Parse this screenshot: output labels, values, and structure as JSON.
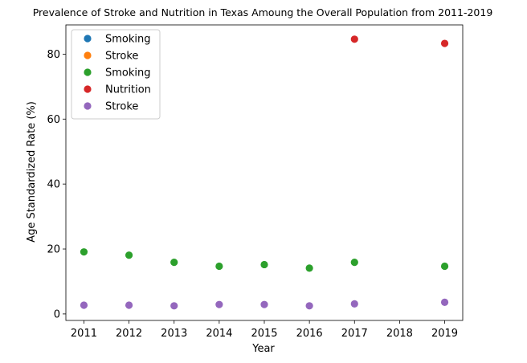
{
  "chart_data": {
    "type": "scatter",
    "title": "Prevalence of Stroke and Nutrition in Texas Amoung the Overall Population from 2011-2019",
    "xlabel": "Year",
    "ylabel": "Age Standardized Rate (%)",
    "xlim": [
      2010.6,
      2019.4
    ],
    "ylim": [
      -2,
      89
    ],
    "x_ticks": [
      2011,
      2012,
      2013,
      2014,
      2015,
      2016,
      2017,
      2018,
      2019
    ],
    "y_ticks": [
      0,
      20,
      40,
      60,
      80
    ],
    "grid": false,
    "legend_position": "top-left",
    "series": [
      {
        "name": "Smoking",
        "color": "#1f77b4",
        "points": []
      },
      {
        "name": "Stroke",
        "color": "#ff7f0e",
        "points": []
      },
      {
        "name": "Smoking",
        "color": "#2ca02c",
        "points": [
          [
            2011,
            19.1
          ],
          [
            2012,
            18.1
          ],
          [
            2013,
            15.9
          ],
          [
            2014,
            14.7
          ],
          [
            2015,
            15.2
          ],
          [
            2016,
            14.1
          ],
          [
            2017,
            15.9
          ],
          [
            2019,
            14.7
          ]
        ]
      },
      {
        "name": "Nutrition",
        "color": "#d62728",
        "points": [
          [
            2017,
            84.6
          ],
          [
            2019,
            83.3
          ]
        ]
      },
      {
        "name": "Stroke",
        "color": "#9467bd",
        "points": [
          [
            2011,
            2.7
          ],
          [
            2012,
            2.7
          ],
          [
            2013,
            2.5
          ],
          [
            2014,
            2.9
          ],
          [
            2015,
            2.9
          ],
          [
            2016,
            2.5
          ],
          [
            2017,
            3.1
          ],
          [
            2019,
            3.6
          ]
        ]
      }
    ]
  }
}
